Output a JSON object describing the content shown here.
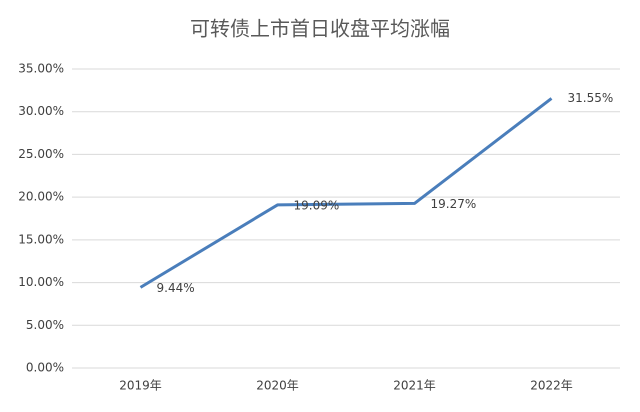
{
  "chart_data": {
    "type": "line",
    "title": "可转债上市首日收盘平均涨幅",
    "categories": [
      "2019年",
      "2020年",
      "2021年",
      "2022年"
    ],
    "series": [
      {
        "name": "平均涨幅",
        "color": "#4a7ebb",
        "values": [
          9.44,
          19.09,
          19.27,
          31.55
        ],
        "value_labels": [
          "9.44%",
          "19.09%",
          "19.27%",
          "31.55%"
        ]
      }
    ],
    "ylim": [
      0,
      35
    ],
    "yticks": [
      {
        "value": 0,
        "label": "0.00%"
      },
      {
        "value": 5,
        "label": "5.00%"
      },
      {
        "value": 10,
        "label": "10.00%"
      },
      {
        "value": 15,
        "label": "15.00%"
      },
      {
        "value": 20,
        "label": "20.00%"
      },
      {
        "value": 25,
        "label": "25.00%"
      },
      {
        "value": 30,
        "label": "30.00%"
      },
      {
        "value": 35,
        "label": "35.00%"
      }
    ],
    "grid": true
  }
}
